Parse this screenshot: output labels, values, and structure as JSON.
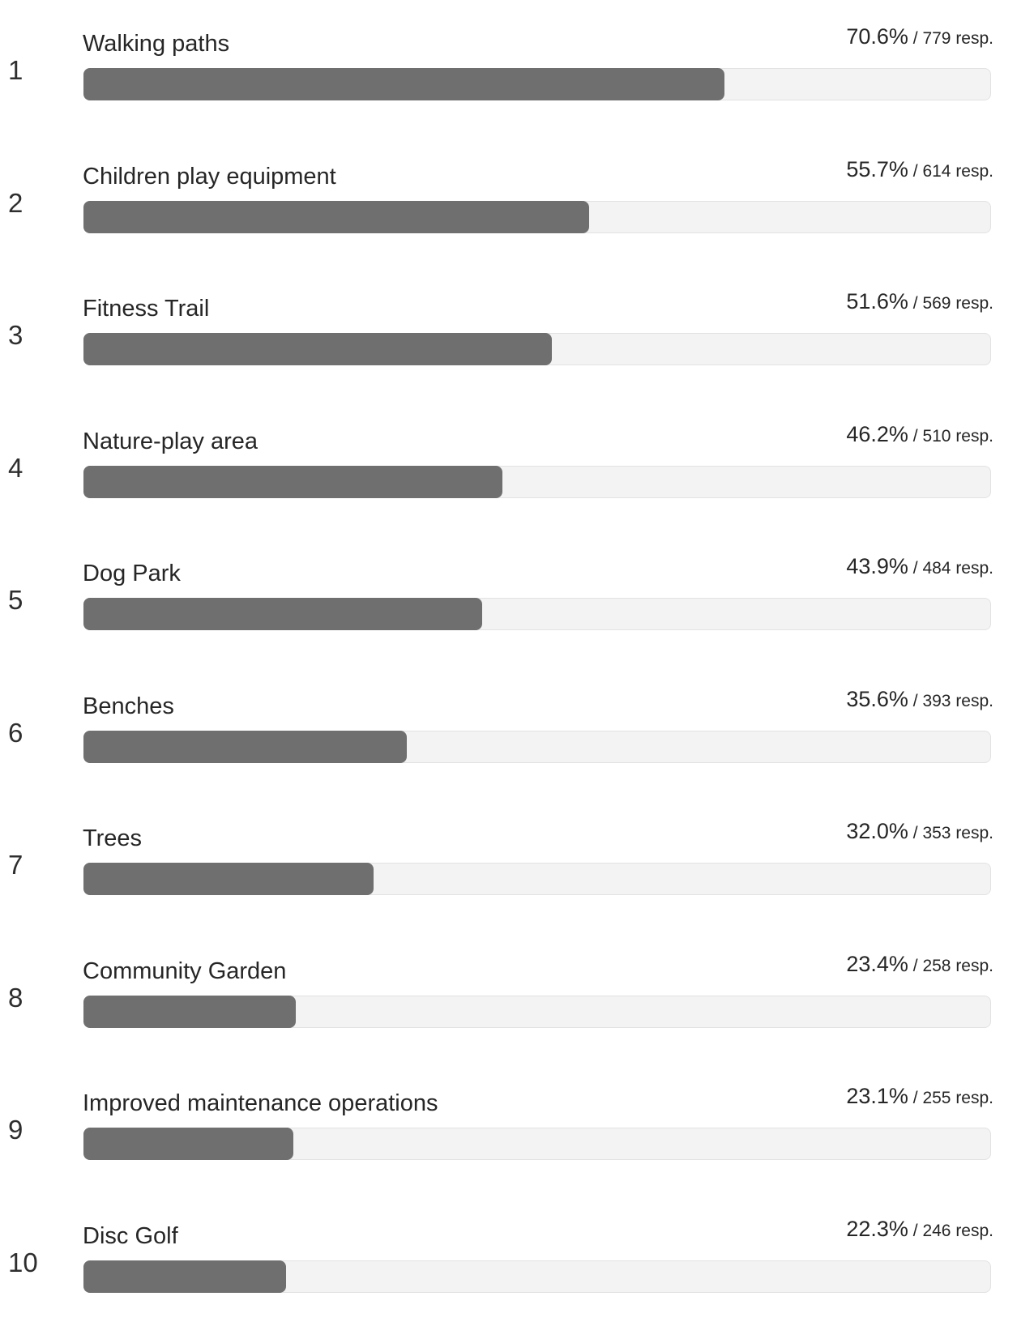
{
  "chart_data": {
    "type": "bar",
    "orientation": "horizontal",
    "categories": [
      "Walking paths",
      "Children play equipment",
      "Fitness Trail",
      "Nature-play area",
      "Dog Park",
      "Benches",
      "Trees",
      "Community Garden",
      "Improved maintenance operations",
      "Disc Golf"
    ],
    "ranks": [
      "1",
      "2",
      "3",
      "4",
      "5",
      "6",
      "7",
      "8",
      "9",
      "10"
    ],
    "series": [
      {
        "values": [
          70.6,
          55.7,
          51.6,
          46.2,
          43.9,
          35.6,
          32.0,
          23.4,
          23.1,
          22.3
        ]
      }
    ],
    "value_labels": [
      "70.6%",
      "55.7%",
      "51.6%",
      "46.2%",
      "43.9%",
      "35.6%",
      "32.0%",
      "23.4%",
      "23.1%",
      "22.3%"
    ],
    "responses": [
      779,
      614,
      569,
      510,
      484,
      393,
      353,
      258,
      255,
      246
    ],
    "response_labels": [
      "/ 779 resp.",
      "/ 614 resp.",
      "/ 569 resp.",
      "/ 510 resp.",
      "/ 484 resp.",
      "/ 393 resp.",
      "/ 353 resp.",
      "/ 258 resp.",
      "/ 255 resp.",
      "/ 246 resp."
    ],
    "xlim": [
      0,
      100
    ],
    "grid": false,
    "colors": {
      "fill": "#6f6f6f",
      "track": "#f3f3f3"
    }
  }
}
